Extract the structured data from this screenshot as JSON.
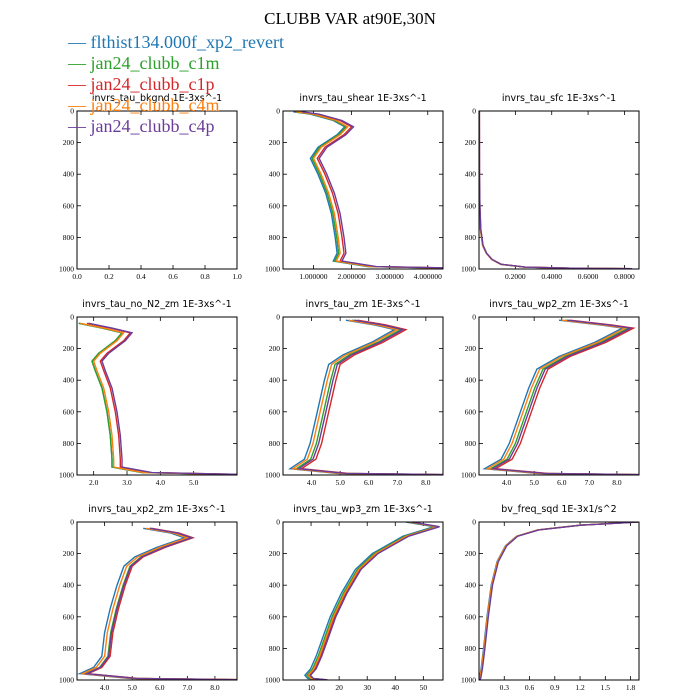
{
  "figure": {
    "title": "CLUBB VAR at90E,30N"
  },
  "colors": {
    "flthist134.000f_xp2_revert": "#1f77b4",
    "jan24_clubb_c1m": "#2ca02c",
    "jan24_clubb_c1p": "#d62728",
    "jan24_clubb_c4m": "#ff7f0e",
    "jan24_clubb_c4p": "#6a3d9a"
  },
  "legend": [
    {
      "glyph": "—",
      "label": "flthist134.000f_xp2_revert",
      "color": "#1f77b4"
    },
    {
      "glyph": "—",
      "label": "jan24_clubb_c1m",
      "color": "#2ca02c"
    },
    {
      "glyph": "—",
      "label": "jan24_clubb_c1p",
      "color": "#d62728"
    },
    {
      "glyph": "—",
      "label": "jan24_clubb_c4m",
      "color": "#ff7f0e"
    },
    {
      "glyph": "—",
      "label": "jan24_clubb_c4p",
      "color": "#6a3d9a"
    }
  ],
  "chart_data": [
    {
      "type": "line",
      "title": "invrs_tau_bkgnd   1E-3xs^-1",
      "xlim": [
        0,
        1
      ],
      "ylim": [
        1000,
        0
      ],
      "xticks": [
        0,
        0.2,
        0.4,
        0.6,
        0.8,
        1.0
      ],
      "xticklabels": [
        "0.0",
        "0.2",
        "0.4",
        "0.6",
        "0.8",
        "1.0"
      ],
      "yticks": [
        0,
        200,
        400,
        600,
        800,
        1000
      ],
      "yticklabels": [
        "0",
        "200",
        "400",
        "600",
        "800",
        "1000"
      ],
      "base": [],
      "series": []
    },
    {
      "type": "line",
      "title": "invrs_tau_shear   1E-3xs^-1",
      "xlim": [
        0.2,
        4.4
      ],
      "ylim": [
        1000,
        0
      ],
      "xticks": [
        1,
        2,
        3,
        4
      ],
      "xticklabels": [
        "1.000000",
        "2.000000",
        "3.000000",
        "4.000000"
      ],
      "yticks": [
        0,
        200,
        400,
        600,
        800,
        1000
      ],
      "yticklabels": [
        "0",
        "200",
        "400",
        "600",
        "800",
        "1000"
      ],
      "base": [
        [
          0.55,
          5
        ],
        [
          1.0,
          20
        ],
        [
          1.6,
          60
        ],
        [
          1.9,
          100
        ],
        [
          1.7,
          150
        ],
        [
          1.2,
          230
        ],
        [
          1.0,
          300
        ],
        [
          1.2,
          400
        ],
        [
          1.4,
          520
        ],
        [
          1.55,
          650
        ],
        [
          1.65,
          800
        ],
        [
          1.7,
          900
        ],
        [
          1.6,
          950
        ],
        [
          2.5,
          985
        ],
        [
          4.4,
          993
        ]
      ],
      "series": [
        {
          "name": "flthist134.000f_xp2_revert",
          "shift": -0.08
        },
        {
          "name": "jan24_clubb_c1m",
          "shift": -0.04
        },
        {
          "name": "jan24_clubb_c1p",
          "shift": 0.1
        },
        {
          "name": "jan24_clubb_c4m",
          "shift": 0
        },
        {
          "name": "jan24_clubb_c4p",
          "shift": 0.15
        }
      ]
    },
    {
      "type": "line",
      "title": "invrs_tau_sfc   1E-3xs^-1",
      "xlim": [
        0,
        0.88
      ],
      "ylim": [
        1000,
        0
      ],
      "xticks": [
        0.2,
        0.4,
        0.6,
        0.8
      ],
      "xticklabels": [
        "0.2000",
        "0.4000",
        "0.6000",
        "0.8000"
      ],
      "yticks": [
        0,
        200,
        400,
        600,
        800,
        1000
      ],
      "yticklabels": [
        "0",
        "200",
        "400",
        "600",
        "800",
        "1000"
      ],
      "base": [
        [
          0.0,
          0
        ],
        [
          0.001,
          400
        ],
        [
          0.003,
          600
        ],
        [
          0.008,
          750
        ],
        [
          0.02,
          850
        ],
        [
          0.04,
          900
        ],
        [
          0.07,
          940
        ],
        [
          0.12,
          970
        ],
        [
          0.25,
          988
        ],
        [
          0.5,
          995
        ],
        [
          0.84,
          998
        ]
      ],
      "series": [
        {
          "name": "flthist134.000f_xp2_revert",
          "shift": 0
        },
        {
          "name": "jan24_clubb_c1m",
          "shift": 0
        },
        {
          "name": "jan24_clubb_c1p",
          "shift": 0.002
        },
        {
          "name": "jan24_clubb_c4m",
          "shift": 0
        },
        {
          "name": "jan24_clubb_c4p",
          "shift": 0.002
        }
      ]
    },
    {
      "type": "line",
      "title": "invrs_tau_no_N2_zm   1E-3xs^-1",
      "xlim": [
        1.5,
        6.3
      ],
      "ylim": [
        1000,
        0
      ],
      "xticks": [
        2,
        3,
        4,
        5
      ],
      "xticklabels": [
        "2.0",
        "3.0",
        "4.0",
        "5.0"
      ],
      "yticks": [
        0,
        200,
        400,
        600,
        800,
        1000
      ],
      "yticklabels": [
        "0",
        "200",
        "400",
        "600",
        "800",
        "1000"
      ],
      "base": [
        [
          1.6,
          40
        ],
        [
          2.3,
          70
        ],
        [
          2.9,
          100
        ],
        [
          2.7,
          150
        ],
        [
          2.2,
          230
        ],
        [
          2.0,
          280
        ],
        [
          2.1,
          340
        ],
        [
          2.3,
          450
        ],
        [
          2.45,
          600
        ],
        [
          2.55,
          750
        ],
        [
          2.6,
          900
        ],
        [
          2.6,
          950
        ],
        [
          3.5,
          985
        ],
        [
          6.3,
          997
        ]
      ],
      "series": [
        {
          "name": "flthist134.000f_xp2_revert",
          "shift": -0.05
        },
        {
          "name": "jan24_clubb_c1m",
          "shift": -0.05
        },
        {
          "name": "jan24_clubb_c1p",
          "shift": 0.2
        },
        {
          "name": "jan24_clubb_c4m",
          "shift": 0
        },
        {
          "name": "jan24_clubb_c4p",
          "shift": 0.25
        }
      ]
    },
    {
      "type": "line",
      "title": "invrs_tau_zm   1E-3xs^-1",
      "xlim": [
        3,
        8.6
      ],
      "ylim": [
        1000,
        0
      ],
      "xticks": [
        4,
        5,
        6,
        7,
        8
      ],
      "xticklabels": [
        "4.0",
        "5.0",
        "6.0",
        "7.0",
        "8.0"
      ],
      "yticks": [
        0,
        200,
        400,
        600,
        800,
        1000
      ],
      "yticklabels": [
        "0",
        "200",
        "400",
        "600",
        "800",
        "1000"
      ],
      "base": [
        [
          5.3,
          20
        ],
        [
          6.3,
          50
        ],
        [
          7.0,
          80
        ],
        [
          6.2,
          160
        ],
        [
          5.2,
          240
        ],
        [
          4.7,
          300
        ],
        [
          4.55,
          400
        ],
        [
          4.3,
          600
        ],
        [
          4.05,
          800
        ],
        [
          3.85,
          900
        ],
        [
          3.35,
          960
        ],
        [
          5.0,
          990
        ],
        [
          8.6,
          998
        ]
      ],
      "series": [
        {
          "name": "flthist134.000f_xp2_revert",
          "shift": -0.1
        },
        {
          "name": "jan24_clubb_c1m",
          "shift": 0.12
        },
        {
          "name": "jan24_clubb_c1p",
          "shift": 0.3
        },
        {
          "name": "jan24_clubb_c4m",
          "shift": 0
        },
        {
          "name": "jan24_clubb_c4p",
          "shift": 0.2
        }
      ]
    },
    {
      "type": "line",
      "title": "invrs_tau_wp2_zm   1E-3xs^-1",
      "xlim": [
        3,
        8.8
      ],
      "ylim": [
        1000,
        0
      ],
      "xticks": [
        4,
        5,
        6,
        7,
        8
      ],
      "xticklabels": [
        "4.0",
        "5.0",
        "6.0",
        "7.0",
        "8.0"
      ],
      "yticks": [
        0,
        200,
        400,
        600,
        800,
        1000
      ],
      "yticklabels": [
        "0",
        "200",
        "400",
        "600",
        "800",
        "1000"
      ],
      "base": [
        [
          6.0,
          20
        ],
        [
          7.5,
          50
        ],
        [
          8.3,
          70
        ],
        [
          7.3,
          160
        ],
        [
          6.0,
          250
        ],
        [
          5.2,
          330
        ],
        [
          4.9,
          450
        ],
        [
          4.6,
          600
        ],
        [
          4.2,
          800
        ],
        [
          3.9,
          900
        ],
        [
          3.3,
          960
        ],
        [
          5.2,
          990
        ],
        [
          8.8,
          998
        ]
      ],
      "series": [
        {
          "name": "flthist134.000f_xp2_revert",
          "shift": -0.1
        },
        {
          "name": "jan24_clubb_c1m",
          "shift": 0.12
        },
        {
          "name": "jan24_clubb_c1p",
          "shift": 0.3
        },
        {
          "name": "jan24_clubb_c4m",
          "shift": 0
        },
        {
          "name": "jan24_clubb_c4p",
          "shift": 0.2
        }
      ]
    },
    {
      "type": "line",
      "title": "invrs_tau_xp2_zm   1E-3xs^-1",
      "xlim": [
        3,
        8.8
      ],
      "ylim": [
        1000,
        0
      ],
      "xticks": [
        4,
        5,
        6,
        7,
        8
      ],
      "xticklabels": [
        "4.0",
        "5.0",
        "6.0",
        "7.0",
        "8.0"
      ],
      "yticks": [
        0,
        200,
        400,
        600,
        800,
        1000
      ],
      "yticklabels": [
        "0",
        "200",
        "400",
        "600",
        "800",
        "1000"
      ],
      "base": [
        [
          5.5,
          40
        ],
        [
          6.5,
          70
        ],
        [
          7.0,
          100
        ],
        [
          6.0,
          160
        ],
        [
          5.2,
          220
        ],
        [
          4.8,
          280
        ],
        [
          4.55,
          400
        ],
        [
          4.3,
          550
        ],
        [
          4.1,
          700
        ],
        [
          4.0,
          850
        ],
        [
          3.7,
          920
        ],
        [
          3.2,
          960
        ],
        [
          5.0,
          990
        ],
        [
          8.8,
          998
        ]
      ],
      "series": [
        {
          "name": "flthist134.000f_xp2_revert",
          "shift": -0.1
        },
        {
          "name": "jan24_clubb_c1m",
          "shift": 0.12
        },
        {
          "name": "jan24_clubb_c1p",
          "shift": 0.2
        },
        {
          "name": "jan24_clubb_c4m",
          "shift": 0
        },
        {
          "name": "jan24_clubb_c4p",
          "shift": 0.15
        }
      ]
    },
    {
      "type": "line",
      "title": "invrs_tau_wp3_zm   1E-3xs^-1",
      "xlim": [
        0,
        57
      ],
      "ylim": [
        1000,
        0
      ],
      "xticks": [
        10,
        20,
        30,
        40,
        50
      ],
      "xticklabels": [
        "10",
        "20",
        "30",
        "40",
        "50"
      ],
      "yticks": [
        0,
        200,
        400,
        600,
        800,
        1000
      ],
      "yticklabels": [
        "0",
        "200",
        "400",
        "600",
        "800",
        "1000"
      ],
      "base": [
        [
          45,
          0
        ],
        [
          55,
          30
        ],
        [
          44,
          90
        ],
        [
          33,
          200
        ],
        [
          27,
          300
        ],
        [
          22,
          450
        ],
        [
          18,
          600
        ],
        [
          15,
          750
        ],
        [
          13,
          850
        ],
        [
          11,
          930
        ],
        [
          9,
          970
        ],
        [
          10,
          990
        ],
        [
          15,
          999
        ]
      ],
      "series": [
        {
          "name": "flthist134.000f_xp2_revert",
          "shift": -1.2
        },
        {
          "name": "jan24_clubb_c1m",
          "shift": -0.5
        },
        {
          "name": "jan24_clubb_c1p",
          "shift": 0.4
        },
        {
          "name": "jan24_clubb_c4m",
          "shift": 0
        },
        {
          "name": "jan24_clubb_c4p",
          "shift": 0.8
        }
      ]
    },
    {
      "type": "line",
      "title": "bv_freq_sqd   1E-3x1/s^2",
      "xlim": [
        0,
        1.9
      ],
      "ylim": [
        1000,
        0
      ],
      "xticks": [
        0.3,
        0.6,
        0.9,
        1.2,
        1.5,
        1.8
      ],
      "xticklabels": [
        "0.3",
        "0.6",
        "0.9",
        "1.2",
        "1.5",
        "1.8"
      ],
      "yticks": [
        0,
        200,
        400,
        600,
        800,
        1000
      ],
      "yticklabels": [
        "0",
        "200",
        "400",
        "600",
        "800",
        "1000"
      ],
      "base": [
        [
          1.88,
          0
        ],
        [
          1.2,
          20
        ],
        [
          0.7,
          50
        ],
        [
          0.45,
          90
        ],
        [
          0.32,
          150
        ],
        [
          0.22,
          250
        ],
        [
          0.15,
          400
        ],
        [
          0.1,
          600
        ],
        [
          0.06,
          800
        ],
        [
          0.03,
          930
        ],
        [
          0.01,
          990
        ],
        [
          0.0,
          999
        ]
      ],
      "series": [
        {
          "name": "flthist134.000f_xp2_revert",
          "shift": -0.005
        },
        {
          "name": "jan24_clubb_c1m",
          "shift": 0
        },
        {
          "name": "jan24_clubb_c1p",
          "shift": 0.005
        },
        {
          "name": "jan24_clubb_c4m",
          "shift": 0
        },
        {
          "name": "jan24_clubb_c4p",
          "shift": 0.01
        }
      ]
    }
  ]
}
